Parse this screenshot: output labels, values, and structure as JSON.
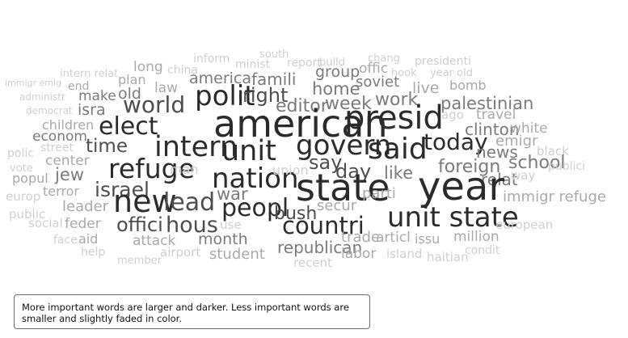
{
  "caption": "More important words are larger and darker. Less important words are smaller and slightly faded in color.",
  "words": [
    {
      "text": "immigr emig",
      "level": 1,
      "size": 11
    },
    {
      "text": "administr",
      "level": 1,
      "size": 12
    },
    {
      "text": "democrat",
      "level": 1,
      "size": 12
    },
    {
      "text": "intern relat",
      "level": 1,
      "size": 13
    },
    {
      "text": "end",
      "level": 2,
      "size": 14
    },
    {
      "text": "make",
      "level": 3,
      "size": 17
    },
    {
      "text": "isra",
      "level": 3,
      "size": 19
    },
    {
      "text": "long",
      "level": 2,
      "size": 17
    },
    {
      "text": "china",
      "level": 1,
      "size": 14
    },
    {
      "text": "plan",
      "level": 2,
      "size": 16
    },
    {
      "text": "old",
      "level": 3,
      "size": 19
    },
    {
      "text": "law",
      "level": 2,
      "size": 17
    },
    {
      "text": "inform",
      "level": 1,
      "size": 14
    },
    {
      "text": "america",
      "level": 3,
      "size": 19
    },
    {
      "text": "minist",
      "level": 1,
      "size": 14
    },
    {
      "text": "south",
      "level": 1,
      "size": 13
    },
    {
      "text": "famili",
      "level": 3,
      "size": 20
    },
    {
      "text": "report",
      "level": 1,
      "size": 14
    },
    {
      "text": "build",
      "level": 1,
      "size": 13
    },
    {
      "text": "group",
      "level": 3,
      "size": 19
    },
    {
      "text": "offic",
      "level": 2,
      "size": 17
    },
    {
      "text": "chang",
      "level": 1,
      "size": 13
    },
    {
      "text": "presidenti",
      "level": 1,
      "size": 14
    },
    {
      "text": "hook",
      "level": 1,
      "size": 13
    },
    {
      "text": "year old",
      "level": 1,
      "size": 13
    },
    {
      "text": "soviet",
      "level": 3,
      "size": 18
    },
    {
      "text": "bomb",
      "level": 2,
      "size": 16
    },
    {
      "text": "live",
      "level": 2,
      "size": 19
    },
    {
      "text": "home",
      "level": 3,
      "size": 21
    },
    {
      "text": "work",
      "level": 3,
      "size": 22
    },
    {
      "text": "polit",
      "level": 5,
      "size": 34
    },
    {
      "text": "right",
      "level": 4,
      "size": 24
    },
    {
      "text": "world",
      "level": 4,
      "size": 28
    },
    {
      "text": "editor",
      "level": 3,
      "size": 22
    },
    {
      "text": "week",
      "level": 3,
      "size": 22
    },
    {
      "text": "palestinian",
      "level": 3,
      "size": 21
    },
    {
      "text": "children",
      "level": 2,
      "size": 16
    },
    {
      "text": "elect",
      "level": 5,
      "size": 30
    },
    {
      "text": "american",
      "level": 5,
      "size": 46
    },
    {
      "text": "presid",
      "level": 5,
      "size": 40
    },
    {
      "text": "travel",
      "level": 2,
      "size": 17
    },
    {
      "text": "ago",
      "level": 1,
      "size": 15
    },
    {
      "text": "clinton",
      "level": 3,
      "size": 20
    },
    {
      "text": "white",
      "level": 2,
      "size": 17
    },
    {
      "text": "econom",
      "level": 3,
      "size": 17
    },
    {
      "text": "time",
      "level": 4,
      "size": 23
    },
    {
      "text": "intern",
      "level": 5,
      "size": 35
    },
    {
      "text": "unit",
      "level": 5,
      "size": 35
    },
    {
      "text": "govern",
      "level": 5,
      "size": 34
    },
    {
      "text": "said",
      "level": 5,
      "size": 36
    },
    {
      "text": "today",
      "level": 5,
      "size": 28
    },
    {
      "text": "emigr",
      "level": 2,
      "size": 18
    },
    {
      "text": "news",
      "level": 3,
      "size": 20
    },
    {
      "text": "black",
      "level": 1,
      "size": 15
    },
    {
      "text": "polic",
      "level": 1,
      "size": 14
    },
    {
      "text": "street",
      "level": 1,
      "size": 14
    },
    {
      "text": "vote",
      "level": 1,
      "size": 13
    },
    {
      "text": "center",
      "level": 2,
      "size": 17
    },
    {
      "text": "refuge",
      "level": 5,
      "size": 33
    },
    {
      "text": "say",
      "level": 4,
      "size": 24
    },
    {
      "text": "foreign",
      "level": 3,
      "size": 22
    },
    {
      "text": "school",
      "level": 3,
      "size": 22
    },
    {
      "text": "publici",
      "level": 1,
      "size": 14
    },
    {
      "text": "popul",
      "level": 2,
      "size": 16
    },
    {
      "text": "jew",
      "level": 3,
      "size": 21
    },
    {
      "text": "man",
      "level": 1,
      "size": 16
    },
    {
      "text": "nation",
      "level": 5,
      "size": 34
    },
    {
      "text": "union",
      "level": 1,
      "size": 16
    },
    {
      "text": "day",
      "level": 4,
      "size": 24
    },
    {
      "text": "like",
      "level": 3,
      "size": 21
    },
    {
      "text": "relat",
      "level": 3,
      "size": 20
    },
    {
      "text": "way",
      "level": 1,
      "size": 15
    },
    {
      "text": "state",
      "level": 5,
      "size": 46
    },
    {
      "text": "year",
      "level": 5,
      "size": 48
    },
    {
      "text": "terror",
      "level": 2,
      "size": 16
    },
    {
      "text": "israel",
      "level": 4,
      "size": 25
    },
    {
      "text": "war",
      "level": 3,
      "size": 21
    },
    {
      "text": "parti",
      "level": 2,
      "size": 18
    },
    {
      "text": "europ",
      "level": 1,
      "size": 15
    },
    {
      "text": "new",
      "level": 5,
      "size": 38
    },
    {
      "text": "lead",
      "level": 4,
      "size": 30
    },
    {
      "text": "immigr refuge",
      "level": 2,
      "size": 18
    },
    {
      "text": "leader",
      "level": 2,
      "size": 18
    },
    {
      "text": "peopl",
      "level": 5,
      "size": 30
    },
    {
      "text": "secur",
      "level": 2,
      "size": 18
    },
    {
      "text": "unit state",
      "level": 5,
      "size": 34
    },
    {
      "text": "public",
      "level": 1,
      "size": 15
    },
    {
      "text": "bush",
      "level": 4,
      "size": 22
    },
    {
      "text": "social",
      "level": 1,
      "size": 15
    },
    {
      "text": "feder",
      "level": 2,
      "size": 17
    },
    {
      "text": "offici",
      "level": 4,
      "size": 24
    },
    {
      "text": "hous",
      "level": 4,
      "size": 27
    },
    {
      "text": "use",
      "level": 1,
      "size": 15
    },
    {
      "text": "countri",
      "level": 5,
      "size": 29
    },
    {
      "text": "european",
      "level": 1,
      "size": 15
    },
    {
      "text": "face",
      "level": 1,
      "size": 14
    },
    {
      "text": "aid",
      "level": 2,
      "size": 16
    },
    {
      "text": "attack",
      "level": 2,
      "size": 17
    },
    {
      "text": "month",
      "level": 3,
      "size": 19
    },
    {
      "text": "trade",
      "level": 2,
      "size": 18
    },
    {
      "text": "articl",
      "level": 2,
      "size": 17
    },
    {
      "text": "issu",
      "level": 2,
      "size": 16
    },
    {
      "text": "million",
      "level": 2,
      "size": 17
    },
    {
      "text": "help",
      "level": 1,
      "size": 14
    },
    {
      "text": "airport",
      "level": 1,
      "size": 15
    },
    {
      "text": "republican",
      "level": 3,
      "size": 20
    },
    {
      "text": "condit",
      "level": 1,
      "size": 14
    },
    {
      "text": "member",
      "level": 1,
      "size": 13
    },
    {
      "text": "student",
      "level": 2,
      "size": 18
    },
    {
      "text": "labor",
      "level": 2,
      "size": 17
    },
    {
      "text": "island",
      "level": 1,
      "size": 15
    },
    {
      "text": "haitian",
      "level": 1,
      "size": 15
    },
    {
      "text": "recent",
      "level": 1,
      "size": 15
    }
  ]
}
